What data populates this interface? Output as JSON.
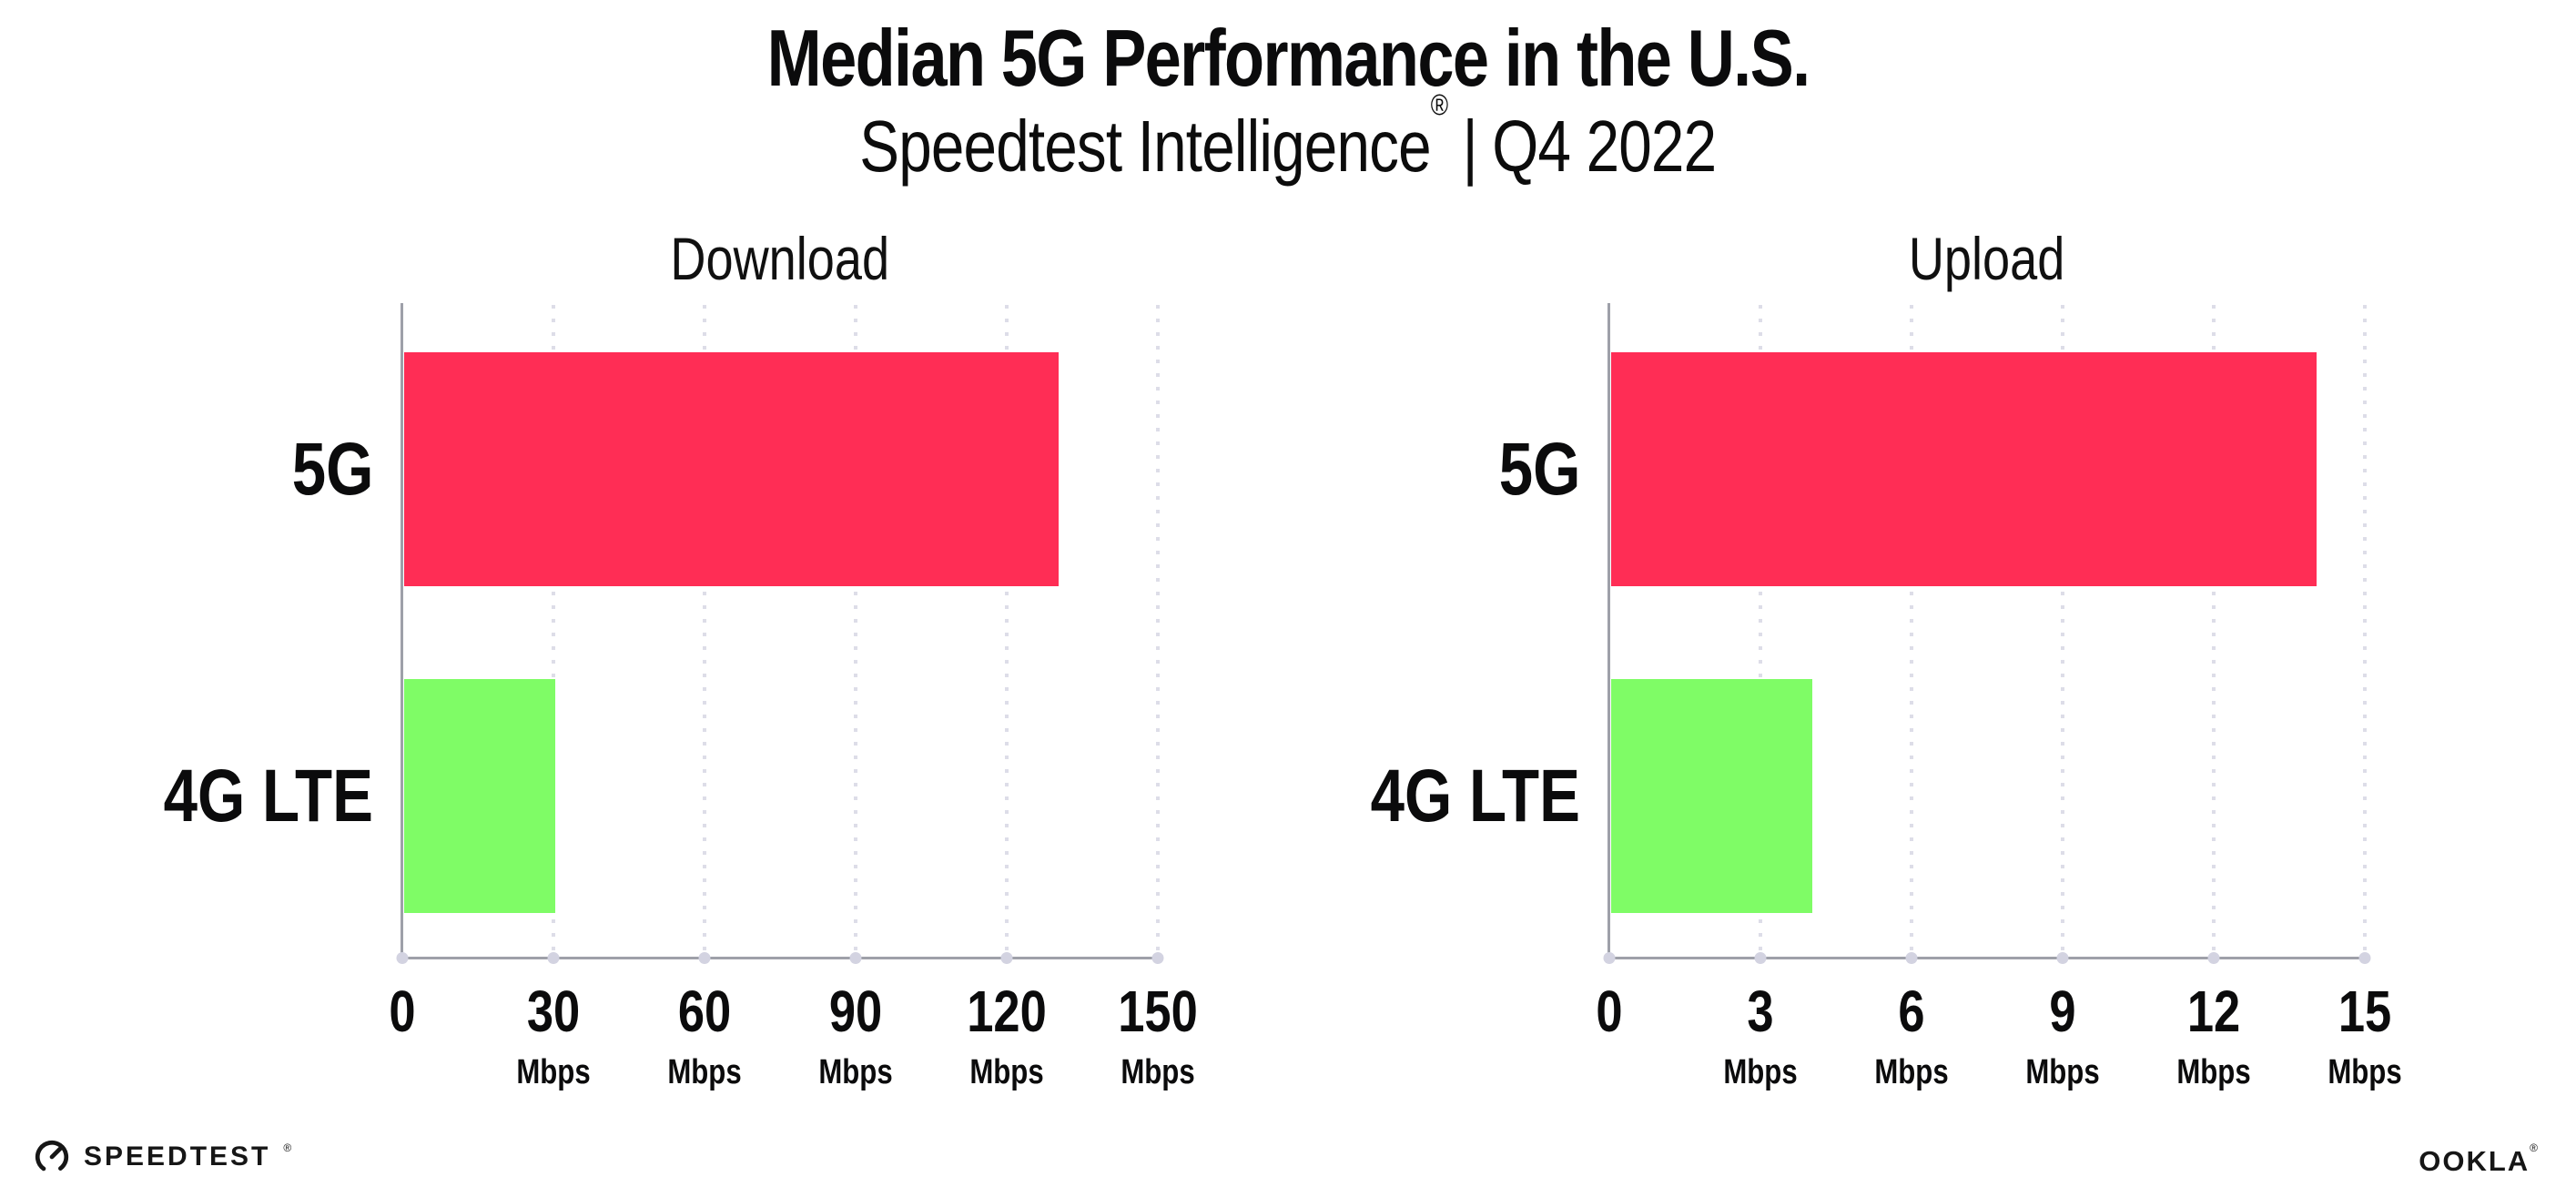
{
  "header": {
    "title": "Median 5G Performance in the U.S.",
    "subtitle_brand": "Speedtest Intelligence",
    "subtitle_reg_mark": "®",
    "subtitle_separator": "|",
    "subtitle_period": "Q4 2022"
  },
  "chart_data": [
    {
      "type": "bar",
      "orientation": "horizontal",
      "title": "Download",
      "categories": [
        "5G",
        "4G LTE"
      ],
      "values": [
        130,
        30
      ],
      "unit": "Mbps",
      "xlim": [
        0,
        150
      ],
      "xticks": [
        0,
        30,
        60,
        90,
        120,
        150
      ],
      "bar_colors": [
        "#FF2D55",
        "#7FFC66"
      ],
      "grid": "vertical-dotted",
      "legend": "none"
    },
    {
      "type": "bar",
      "orientation": "horizontal",
      "title": "Upload",
      "categories": [
        "5G",
        "4G LTE"
      ],
      "values": [
        14,
        4
      ],
      "unit": "Mbps",
      "xlim": [
        0,
        15
      ],
      "xticks": [
        0,
        3,
        6,
        9,
        12,
        15
      ],
      "bar_colors": [
        "#FF2D55",
        "#7FFC66"
      ],
      "grid": "vertical-dotted",
      "legend": "none"
    }
  ],
  "colors": {
    "bar_5g": "#FF2D55",
    "bar_4g_lte": "#7FFC66",
    "axis": "#9ea0a9",
    "gridline": "#dddde8",
    "text": "#0b0b0c"
  },
  "footer": {
    "speedtest_wordmark": "SPEEDTEST",
    "speedtest_reg_mark": "®",
    "ookla_wordmark": "OOKLA",
    "ookla_reg_mark": "®"
  }
}
